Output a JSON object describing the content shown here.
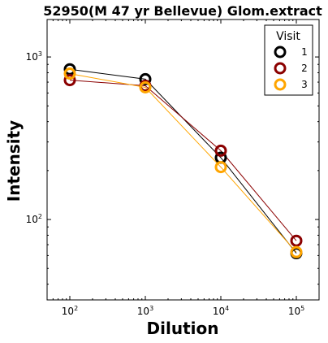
{
  "chart_data": {
    "type": "line",
    "title": "52950(M 47 yr Bellevue) Glom.extract",
    "xlabel": "Dilution",
    "ylabel": "Intensity",
    "xscale": "log",
    "yscale": "log",
    "x": [
      100,
      1000,
      10000,
      100000
    ],
    "xlim": [
      50,
      200000
    ],
    "ylim": [
      32,
      1700
    ],
    "x_ticks": [
      {
        "value": 100,
        "base": "10",
        "exp": "2"
      },
      {
        "value": 1000,
        "base": "10",
        "exp": "3"
      },
      {
        "value": 10000,
        "base": "10",
        "exp": "4"
      },
      {
        "value": 100000,
        "base": "10",
        "exp": "5"
      }
    ],
    "y_ticks": [
      {
        "value": 100,
        "base": "10",
        "exp": "2"
      },
      {
        "value": 1000,
        "base": "10",
        "exp": "3"
      }
    ],
    "legend": {
      "title": "Visit",
      "position": "top-right"
    },
    "series": [
      {
        "name": "1",
        "color": "#000000",
        "values": [
          840,
          730,
          240,
          62
        ]
      },
      {
        "name": "2",
        "color": "#8b0000",
        "values": [
          720,
          665,
          265,
          74
        ]
      },
      {
        "name": "3",
        "color": "#ffa500",
        "values": [
          790,
          650,
          210,
          63
        ]
      }
    ],
    "grid": false
  }
}
